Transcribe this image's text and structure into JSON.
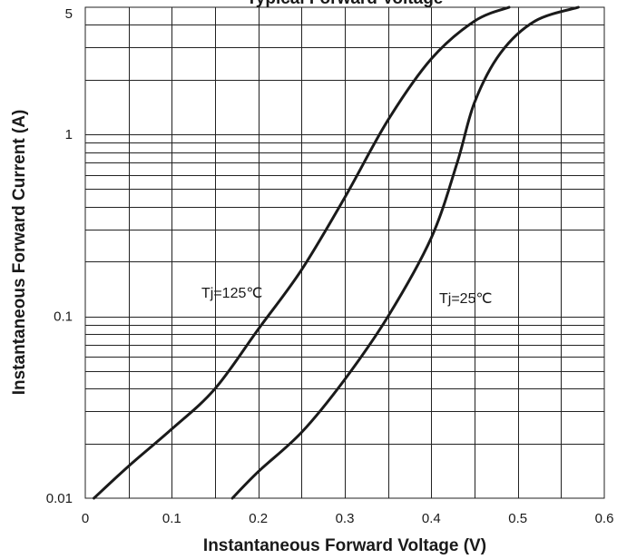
{
  "chart_data": {
    "type": "line",
    "title": "Typical Forward Voltage",
    "xlabel": "Instantaneous Forward Voltage (V)",
    "ylabel": "Instantaneous Forward Current (A)",
    "xlim": [
      0,
      0.6
    ],
    "ylim": [
      0.01,
      5
    ],
    "yscale": "log",
    "grid": true,
    "x_ticks": [
      {
        "value": 0,
        "label": "0"
      },
      {
        "value": 0.1,
        "label": "0.1"
      },
      {
        "value": 0.2,
        "label": "0.2"
      },
      {
        "value": 0.3,
        "label": "0.3"
      },
      {
        "value": 0.4,
        "label": "0.4"
      },
      {
        "value": 0.5,
        "label": "0.5"
      },
      {
        "value": 0.6,
        "label": "0.6"
      }
    ],
    "y_ticks": [
      {
        "value": 0.01,
        "label": "0.01"
      },
      {
        "value": 0.1,
        "label": "0.1"
      },
      {
        "value": 1,
        "label": "1"
      },
      {
        "value": 5,
        "label": "5"
      }
    ],
    "series": [
      {
        "name": "Tj=125℃",
        "points": [
          [
            0.01,
            0.01
          ],
          [
            0.05,
            0.015
          ],
          [
            0.1,
            0.024
          ],
          [
            0.15,
            0.04
          ],
          [
            0.2,
            0.085
          ],
          [
            0.25,
            0.18
          ],
          [
            0.3,
            0.45
          ],
          [
            0.35,
            1.2
          ],
          [
            0.4,
            2.6
          ],
          [
            0.45,
            4.2
          ],
          [
            0.49,
            5
          ]
        ]
      },
      {
        "name": "Tj=25℃",
        "points": [
          [
            0.17,
            0.01
          ],
          [
            0.2,
            0.014
          ],
          [
            0.25,
            0.023
          ],
          [
            0.3,
            0.045
          ],
          [
            0.35,
            0.1
          ],
          [
            0.4,
            0.27
          ],
          [
            0.43,
            0.7
          ],
          [
            0.45,
            1.5
          ],
          [
            0.48,
            2.8
          ],
          [
            0.52,
            4.2
          ],
          [
            0.57,
            5
          ]
        ]
      }
    ]
  }
}
